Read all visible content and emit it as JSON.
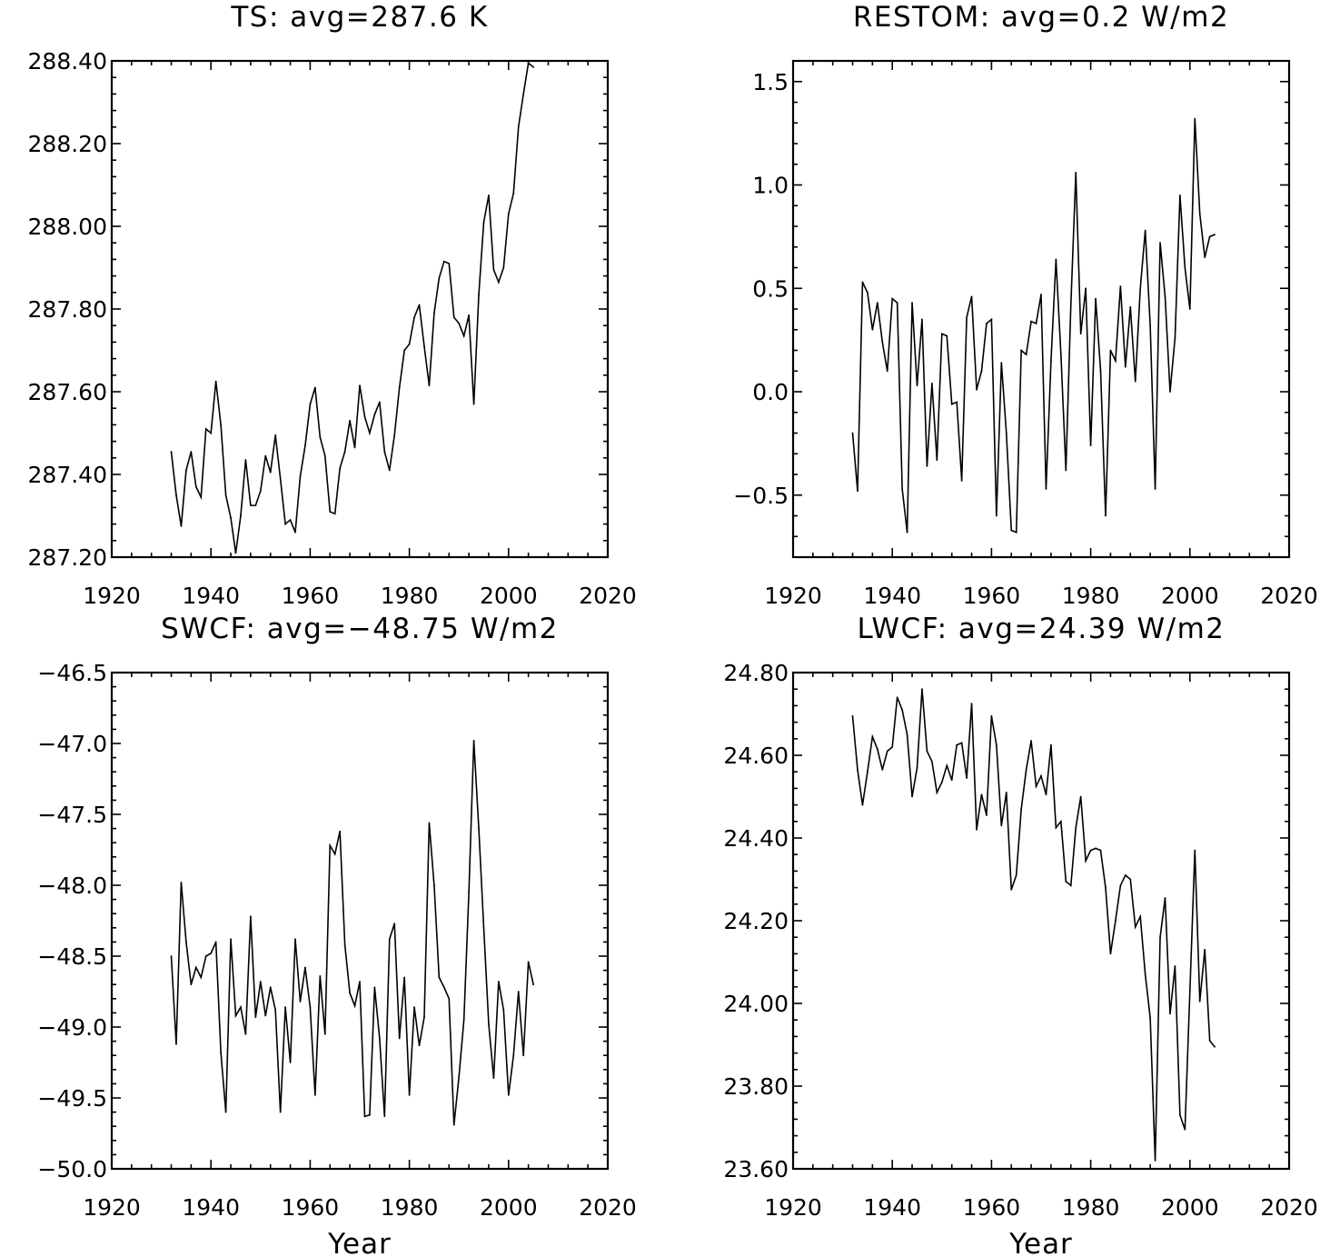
{
  "chart_data": [
    {
      "type": "line",
      "title": "TS: avg=287.6 K",
      "xlabel": "",
      "ylabel": "",
      "xlim": [
        1920,
        2020
      ],
      "ylim": [
        287.2,
        288.4
      ],
      "x_ticks": [
        "1920",
        "1940",
        "1960",
        "1980",
        "2000",
        "2020"
      ],
      "y_ticks": [
        "287.20",
        "287.40",
        "287.60",
        "287.80",
        "288.00",
        "288.20",
        "288.40"
      ],
      "x_start": 1932,
      "values": [
        287.455,
        287.35,
        287.275,
        287.41,
        287.455,
        287.37,
        287.345,
        287.51,
        287.5,
        287.625,
        287.52,
        287.35,
        287.295,
        287.21,
        287.3,
        287.435,
        287.325,
        287.325,
        287.36,
        287.445,
        287.405,
        287.495,
        287.39,
        287.28,
        287.29,
        287.26,
        287.395,
        287.47,
        287.57,
        287.61,
        287.49,
        287.445,
        287.31,
        287.305,
        287.415,
        287.455,
        287.53,
        287.465,
        287.615,
        287.54,
        287.5,
        287.545,
        287.575,
        287.455,
        287.41,
        287.495,
        287.61,
        287.7,
        287.715,
        287.78,
        287.81,
        287.71,
        287.615,
        287.79,
        287.875,
        287.915,
        287.91,
        287.78,
        287.765,
        287.735,
        287.785,
        287.57,
        287.835,
        288.01,
        288.075,
        287.895,
        287.865,
        287.9,
        288.03,
        288.08,
        288.24,
        288.32,
        288.395,
        288.385
      ]
    },
    {
      "type": "line",
      "title": "RESTOM: avg=0.2 W/m2",
      "xlabel": "",
      "ylabel": "",
      "xlim": [
        1920,
        2020
      ],
      "ylim": [
        -0.8,
        1.6
      ],
      "x_ticks": [
        "1920",
        "1940",
        "1960",
        "1980",
        "2000",
        "2020"
      ],
      "y_ticks": [
        "−0.5",
        "0.0",
        "0.5",
        "1.0",
        "1.5"
      ],
      "y_tick_values": [
        -0.5,
        0.0,
        0.5,
        1.0,
        1.5
      ],
      "x_start": 1932,
      "values": [
        -0.2,
        -0.48,
        0.53,
        0.48,
        0.3,
        0.43,
        0.24,
        0.1,
        0.45,
        0.43,
        -0.47,
        -0.68,
        0.43,
        0.03,
        0.35,
        -0.36,
        0.04,
        -0.33,
        0.28,
        0.27,
        -0.06,
        -0.05,
        -0.43,
        0.36,
        0.46,
        0.01,
        0.1,
        0.33,
        0.35,
        -0.6,
        0.14,
        -0.2,
        -0.67,
        -0.68,
        0.2,
        0.18,
        0.34,
        0.33,
        0.47,
        -0.47,
        0.15,
        0.64,
        0.18,
        -0.38,
        0.42,
        1.06,
        0.28,
        0.5,
        -0.26,
        0.45,
        0.1,
        -0.6,
        0.2,
        0.15,
        0.51,
        0.12,
        0.41,
        0.05,
        0.5,
        0.78,
        0.32,
        -0.47,
        0.72,
        0.46,
        0.0,
        0.26,
        0.95,
        0.6,
        0.4,
        1.32,
        0.86,
        0.65,
        0.75,
        0.76
      ]
    },
    {
      "type": "line",
      "title": "SWCF: avg=−48.75 W/m2",
      "xlabel": "Year",
      "ylabel": "",
      "xlim": [
        1920,
        2020
      ],
      "ylim": [
        -50.0,
        -46.5
      ],
      "x_ticks": [
        "1920",
        "1940",
        "1960",
        "1980",
        "2000",
        "2020"
      ],
      "y_ticks": [
        "−50.0",
        "−49.5",
        "−49.0",
        "−48.5",
        "−48.0",
        "−47.5",
        "−47.0",
        "−46.5"
      ],
      "y_tick_values": [
        -50.0,
        -49.5,
        -49.0,
        -48.5,
        -48.0,
        -47.5,
        -47.0,
        -46.5
      ],
      "x_start": 1932,
      "values": [
        -48.5,
        -49.12,
        -47.98,
        -48.4,
        -48.7,
        -48.58,
        -48.65,
        -48.5,
        -48.48,
        -48.4,
        -49.18,
        -49.6,
        -48.38,
        -48.92,
        -48.86,
        -49.05,
        -48.22,
        -48.93,
        -48.68,
        -48.92,
        -48.72,
        -48.88,
        -49.6,
        -48.86,
        -49.25,
        -48.38,
        -48.82,
        -48.58,
        -48.86,
        -49.48,
        -48.64,
        -49.05,
        -47.72,
        -47.78,
        -47.62,
        -48.42,
        -48.76,
        -48.85,
        -48.68,
        -49.63,
        -49.62,
        -48.72,
        -49.08,
        -49.63,
        -48.38,
        -48.27,
        -49.08,
        -48.65,
        -49.48,
        -48.86,
        -49.13,
        -48.93,
        -47.56,
        -48.0,
        -48.65,
        -48.72,
        -48.8,
        -49.69,
        -49.35,
        -48.95,
        -48.05,
        -46.98,
        -47.6,
        -48.3,
        -48.98,
        -49.36,
        -48.68,
        -48.88,
        -49.48,
        -49.2,
        -48.75,
        -49.2,
        -48.54,
        -48.7
      ]
    },
    {
      "type": "line",
      "title": "LWCF: avg=24.39 W/m2",
      "xlabel": "Year",
      "ylabel": "",
      "xlim": [
        1920,
        2020
      ],
      "ylim": [
        23.6,
        24.8
      ],
      "x_ticks": [
        "1920",
        "1940",
        "1960",
        "1980",
        "2000",
        "2020"
      ],
      "y_ticks": [
        "23.60",
        "23.80",
        "24.00",
        "24.20",
        "24.40",
        "24.60",
        "24.80"
      ],
      "x_start": 1932,
      "values": [
        24.695,
        24.565,
        24.48,
        24.56,
        24.645,
        24.615,
        24.565,
        24.61,
        24.62,
        24.74,
        24.71,
        24.65,
        24.5,
        24.57,
        24.76,
        24.61,
        24.585,
        24.51,
        24.535,
        24.575,
        24.54,
        24.625,
        24.63,
        24.545,
        24.725,
        24.42,
        24.505,
        24.455,
        24.695,
        24.625,
        24.43,
        24.51,
        24.275,
        24.31,
        24.47,
        24.565,
        24.635,
        24.525,
        24.55,
        24.505,
        24.625,
        24.425,
        24.44,
        24.295,
        24.285,
        24.425,
        24.5,
        24.345,
        24.37,
        24.375,
        24.37,
        24.28,
        24.12,
        24.2,
        24.285,
        24.31,
        24.3,
        24.185,
        24.21,
        24.07,
        23.965,
        23.62,
        24.16,
        24.255,
        23.975,
        24.09,
        23.73,
        23.695,
        24.03,
        24.37,
        24.005,
        24.13,
        23.91,
        23.895
      ]
    }
  ]
}
